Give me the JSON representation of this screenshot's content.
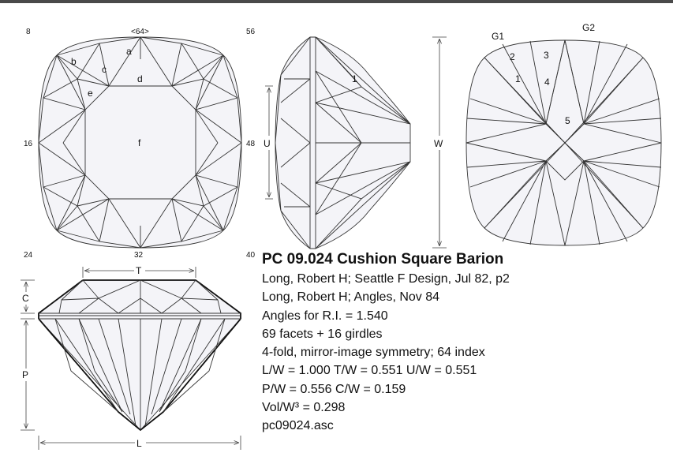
{
  "index_labels": {
    "i8": "8",
    "i64": "<64>",
    "i56": "56",
    "i16": "16",
    "i48": "48",
    "i24": "24",
    "i32": "32",
    "i40": "40"
  },
  "facet_labels": {
    "a": "a",
    "b": "b",
    "c": "c",
    "d": "d",
    "e": "e",
    "f": "f",
    "side_1": "1",
    "pav_1": "1",
    "pav_2": "2",
    "pav_3": "3",
    "pav_4": "4",
    "pav_5": "5",
    "g1": "G1",
    "g2": "G2"
  },
  "dimension_labels": {
    "u": "U",
    "w": "W",
    "t": "T",
    "c": "C",
    "p": "P",
    "l": "L"
  },
  "info": {
    "title": "PC 09.024 Cushion Square Barion",
    "lines": [
      "Long, Robert H; Seattle F Design, Jul 82, p2",
      "Long, Robert H; Angles, Nov 84",
      "Angles for R.I. = 1.540",
      "69 facets + 16 girdles",
      "4-fold, mirror-image symmetry; 64 index",
      "L/W = 1.000 T/W = 0.551 U/W = 0.551",
      "P/W = 0.556 C/W = 0.159",
      "Vol/W³ = 0.298",
      "pc09024.asc"
    ]
  }
}
